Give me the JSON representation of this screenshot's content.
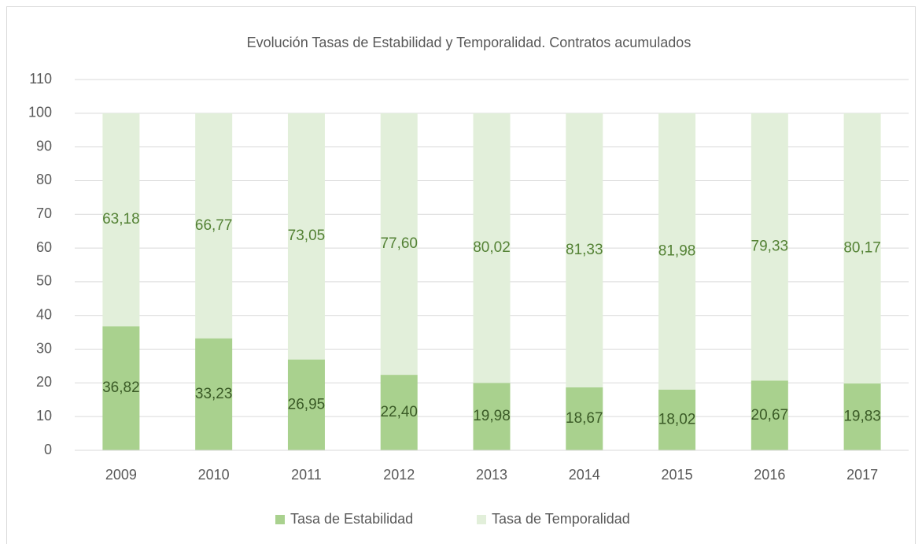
{
  "chart_data": {
    "type": "stacked_bar",
    "title": "Evolución Tasas de Estabilidad y Temporalidad. Contratos acumulados",
    "categories": [
      "2009",
      "2010",
      "2011",
      "2012",
      "2013",
      "2014",
      "2015",
      "2016",
      "2017"
    ],
    "series": [
      {
        "name": "Tasa de Estabilidad",
        "color": "#a9d18e",
        "label_color": "#3a5a26",
        "values": [
          36.82,
          33.23,
          26.95,
          22.4,
          19.98,
          18.67,
          18.02,
          20.67,
          19.83
        ],
        "value_labels": [
          "36,82",
          "33,23",
          "26,95",
          "22,40",
          "19,98",
          "18,67",
          "18,02",
          "20,67",
          "19,83"
        ]
      },
      {
        "name": "Tasa de Temporalidad",
        "color": "#e2efda",
        "label_color": "#548235",
        "values": [
          63.18,
          66.77,
          73.05,
          77.6,
          80.02,
          81.33,
          81.98,
          79.33,
          80.17
        ],
        "value_labels": [
          "63,18",
          "66,77",
          "73,05",
          "77,60",
          "80,02",
          "81,33",
          "81,98",
          "79,33",
          "80,17"
        ]
      }
    ],
    "ylim": [
      0,
      110
    ],
    "yticks": [
      0,
      10,
      20,
      30,
      40,
      50,
      60,
      70,
      80,
      90,
      100,
      110
    ],
    "grid": true,
    "legend": "bottom"
  }
}
